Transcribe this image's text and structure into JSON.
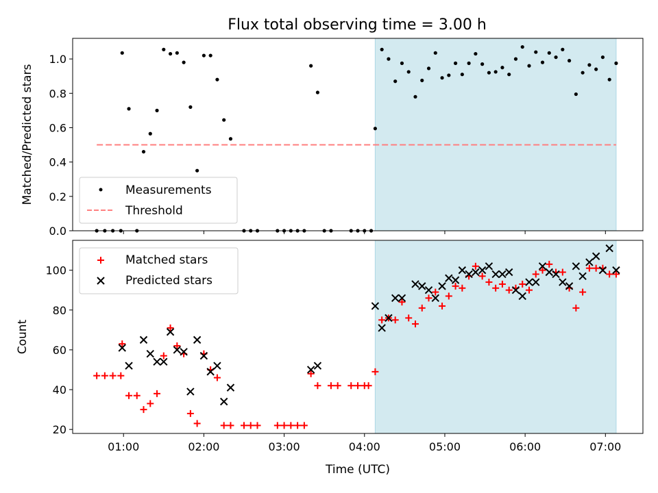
{
  "chart_data": {
    "title": "Flux total observing time = 3.00 h",
    "shaded_interval": [
      "04:08",
      "07:08"
    ],
    "shade_color": "#d3eaf0",
    "x_axis": {
      "label": "Time (UTC)",
      "range": [
        "00:22",
        "07:28"
      ],
      "ticks": [
        "01:00",
        "02:00",
        "03:00",
        "04:00",
        "05:00",
        "06:00",
        "07:00"
      ]
    },
    "panels": [
      {
        "type": "scatter",
        "ylabel": "Matched/Predicted stars",
        "ylim": [
          0,
          1.12
        ],
        "yticks": [
          "0.0",
          "0.2",
          "0.4",
          "0.6",
          "0.8",
          "1.0"
        ],
        "legend": {
          "position": "lower-left",
          "entries": [
            "Measurements",
            "Threshold"
          ]
        },
        "threshold": {
          "value": 0.5,
          "from": "00:40",
          "to": "07:08",
          "color": "#ff7f7f"
        },
        "measurements": {
          "color": "#000000",
          "points": [
            [
              "00:40",
              0
            ],
            [
              "00:46",
              0
            ],
            [
              "00:52",
              0
            ],
            [
              "00:58",
              0
            ],
            [
              "00:59",
              1.035
            ],
            [
              "01:04",
              0.71
            ],
            [
              "01:10",
              0
            ],
            [
              "01:15",
              0.46
            ],
            [
              "01:20",
              0.565
            ],
            [
              "01:25",
              0.7
            ],
            [
              "01:30",
              1.055
            ],
            [
              "01:35",
              1.03
            ],
            [
              "01:40",
              1.035
            ],
            [
              "01:45",
              0.98
            ],
            [
              "01:50",
              0.72
            ],
            [
              "01:55",
              0.35
            ],
            [
              "02:00",
              1.02
            ],
            [
              "02:05",
              1.02
            ],
            [
              "02:10",
              0.88
            ],
            [
              "02:15",
              0.645
            ],
            [
              "02:20",
              0.535
            ],
            [
              "02:30",
              0
            ],
            [
              "02:35",
              0
            ],
            [
              "02:40",
              0
            ],
            [
              "02:55",
              0
            ],
            [
              "03:00",
              0
            ],
            [
              "03:05",
              0
            ],
            [
              "03:10",
              0
            ],
            [
              "03:15",
              0
            ],
            [
              "03:20",
              0.96
            ],
            [
              "03:25",
              0.805
            ],
            [
              "03:30",
              0
            ],
            [
              "03:35",
              0
            ],
            [
              "03:50",
              0
            ],
            [
              "03:55",
              0
            ],
            [
              "04:00",
              0
            ],
            [
              "04:05",
              0
            ],
            [
              "04:08",
              0.595
            ],
            [
              "04:13",
              1.055
            ],
            [
              "04:18",
              1.0
            ],
            [
              "04:23",
              0.87
            ],
            [
              "04:28",
              0.975
            ],
            [
              "04:33",
              0.925
            ],
            [
              "04:38",
              0.78
            ],
            [
              "04:43",
              0.875
            ],
            [
              "04:48",
              0.945
            ],
            [
              "04:53",
              1.035
            ],
            [
              "04:58",
              0.89
            ],
            [
              "05:03",
              0.905
            ],
            [
              "05:08",
              0.975
            ],
            [
              "05:13",
              0.91
            ],
            [
              "05:18",
              0.975
            ],
            [
              "05:23",
              1.03
            ],
            [
              "05:28",
              0.97
            ],
            [
              "05:33",
              0.92
            ],
            [
              "05:38",
              0.925
            ],
            [
              "05:43",
              0.95
            ],
            [
              "05:48",
              0.91
            ],
            [
              "05:53",
              1.0
            ],
            [
              "05:58",
              1.07
            ],
            [
              "06:03",
              0.96
            ],
            [
              "06:08",
              1.04
            ],
            [
              "06:13",
              0.98
            ],
            [
              "06:18",
              1.035
            ],
            [
              "06:23",
              1.01
            ],
            [
              "06:28",
              1.055
            ],
            [
              "06:33",
              0.99
            ],
            [
              "06:38",
              0.795
            ],
            [
              "06:43",
              0.92
            ],
            [
              "06:48",
              0.965
            ],
            [
              "06:53",
              0.94
            ],
            [
              "06:58",
              1.01
            ],
            [
              "07:03",
              0.88
            ],
            [
              "07:08",
              0.975
            ]
          ]
        }
      },
      {
        "type": "scatter",
        "ylabel": "Count",
        "ylim": [
          18,
          115
        ],
        "yticks": [
          "20",
          "40",
          "60",
          "80",
          "100"
        ],
        "legend": {
          "position": "upper-left",
          "entries": [
            "Matched stars",
            "Predicted stars"
          ]
        },
        "matched": {
          "color": "#ff0000",
          "points": [
            [
              "00:40",
              47
            ],
            [
              "00:46",
              47
            ],
            [
              "00:52",
              47
            ],
            [
              "00:58",
              47
            ],
            [
              "00:59",
              63
            ],
            [
              "01:04",
              37
            ],
            [
              "01:10",
              37
            ],
            [
              "01:15",
              30
            ],
            [
              "01:20",
              33
            ],
            [
              "01:25",
              38
            ],
            [
              "01:30",
              57
            ],
            [
              "01:35",
              71
            ],
            [
              "01:40",
              62
            ],
            [
              "01:45",
              58
            ],
            [
              "01:50",
              28
            ],
            [
              "01:55",
              23
            ],
            [
              "02:00",
              58
            ],
            [
              "02:05",
              50
            ],
            [
              "02:10",
              46
            ],
            [
              "02:15",
              22
            ],
            [
              "02:20",
              22
            ],
            [
              "02:30",
              22
            ],
            [
              "02:35",
              22
            ],
            [
              "02:40",
              22
            ],
            [
              "02:55",
              22
            ],
            [
              "03:00",
              22
            ],
            [
              "03:05",
              22
            ],
            [
              "03:10",
              22
            ],
            [
              "03:15",
              22
            ],
            [
              "03:20",
              48
            ],
            [
              "03:25",
              42
            ],
            [
              "03:35",
              42
            ],
            [
              "03:40",
              42
            ],
            [
              "03:50",
              42
            ],
            [
              "03:55",
              42
            ],
            [
              "04:00",
              42
            ],
            [
              "04:03",
              42
            ],
            [
              "04:08",
              49
            ],
            [
              "04:13",
              75
            ],
            [
              "04:18",
              76
            ],
            [
              "04:23",
              75
            ],
            [
              "04:28",
              84
            ],
            [
              "04:33",
              76
            ],
            [
              "04:38",
              73
            ],
            [
              "04:43",
              81
            ],
            [
              "04:48",
              86
            ],
            [
              "04:53",
              89
            ],
            [
              "04:58",
              82
            ],
            [
              "05:03",
              87
            ],
            [
              "05:08",
              92
            ],
            [
              "05:13",
              91
            ],
            [
              "05:18",
              97
            ],
            [
              "05:23",
              102
            ],
            [
              "05:28",
              97
            ],
            [
              "05:33",
              94
            ],
            [
              "05:38",
              91
            ],
            [
              "05:43",
              93
            ],
            [
              "05:48",
              90
            ],
            [
              "05:53",
              91
            ],
            [
              "05:58",
              93
            ],
            [
              "06:03",
              90
            ],
            [
              "06:08",
              98
            ],
            [
              "06:13",
              100
            ],
            [
              "06:18",
              103
            ],
            [
              "06:23",
              99
            ],
            [
              "06:28",
              99
            ],
            [
              "06:33",
              91
            ],
            [
              "06:38",
              81
            ],
            [
              "06:43",
              89
            ],
            [
              "06:48",
              101
            ],
            [
              "06:53",
              101
            ],
            [
              "06:58",
              101
            ],
            [
              "07:03",
              98
            ],
            [
              "07:08",
              98
            ]
          ]
        },
        "predicted": {
          "color": "#000000",
          "points": [
            [
              "00:59",
              61
            ],
            [
              "01:04",
              52
            ],
            [
              "01:15",
              65
            ],
            [
              "01:20",
              58
            ],
            [
              "01:25",
              54
            ],
            [
              "01:30",
              54
            ],
            [
              "01:35",
              69
            ],
            [
              "01:40",
              60
            ],
            [
              "01:45",
              59
            ],
            [
              "01:50",
              39
            ],
            [
              "01:55",
              65
            ],
            [
              "02:00",
              57
            ],
            [
              "02:05",
              49
            ],
            [
              "02:10",
              52
            ],
            [
              "02:15",
              34
            ],
            [
              "02:20",
              41
            ],
            [
              "03:20",
              50
            ],
            [
              "03:25",
              52
            ],
            [
              "04:08",
              82
            ],
            [
              "04:13",
              71
            ],
            [
              "04:18",
              76
            ],
            [
              "04:23",
              86
            ],
            [
              "04:28",
              86
            ],
            [
              "04:38",
              93
            ],
            [
              "04:43",
              92
            ],
            [
              "04:48",
              90
            ],
            [
              "04:53",
              86
            ],
            [
              "04:58",
              92
            ],
            [
              "05:03",
              96
            ],
            [
              "05:08",
              95
            ],
            [
              "05:13",
              100
            ],
            [
              "05:18",
              98
            ],
            [
              "05:23",
              99
            ],
            [
              "05:28",
              100
            ],
            [
              "05:33",
              102
            ],
            [
              "05:38",
              98
            ],
            [
              "05:43",
              98
            ],
            [
              "05:48",
              99
            ],
            [
              "05:53",
              90
            ],
            [
              "05:58",
              87
            ],
            [
              "06:03",
              94
            ],
            [
              "06:08",
              94
            ],
            [
              "06:13",
              102
            ],
            [
              "06:18",
              99
            ],
            [
              "06:23",
              98
            ],
            [
              "06:28",
              94
            ],
            [
              "06:33",
              92
            ],
            [
              "06:38",
              102
            ],
            [
              "06:43",
              97
            ],
            [
              "06:48",
              104
            ],
            [
              "06:53",
              107
            ],
            [
              "06:58",
              100
            ],
            [
              "07:03",
              111
            ],
            [
              "07:08",
              100
            ]
          ]
        }
      }
    ]
  }
}
